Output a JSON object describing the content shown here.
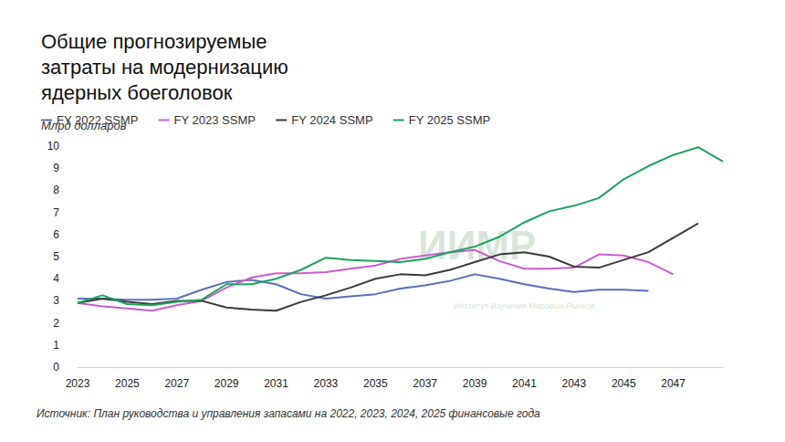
{
  "chart_data": {
    "type": "line",
    "title": "Общие прогнозируемые затраты на модернизацию ядерных боеголовок",
    "subtitle": "Млрд долларов",
    "source": "Источник: План руководства и управления запасами на 2022, 2023, 2024, 2025 финансовые года",
    "annotations": [
      "ИИМР",
      "Институт Изучения Мировых Рынков"
    ],
    "categories": [
      "2023",
      null,
      "2025",
      null,
      "2027",
      null,
      "2029",
      null,
      "2031",
      null,
      "2033",
      null,
      "2035",
      null,
      "2037",
      null,
      "2039",
      null,
      "2041",
      null,
      "2043",
      null,
      "2045",
      null,
      "2047",
      null,
      null
    ],
    "series": [
      {
        "name": "FY 2022 SSMP",
        "color": "#5b6fb5",
        "values": [
          3.1,
          3.1,
          3.05,
          3.05,
          3.1,
          3.5,
          3.85,
          3.95,
          3.75,
          3.3,
          3.1,
          3.2,
          3.3,
          3.55,
          3.7,
          3.9,
          4.2,
          4.0,
          3.75,
          3.55,
          3.4,
          3.5,
          3.5,
          3.45,
          null,
          null,
          null
        ]
      },
      {
        "name": "FY 2023 SSMP",
        "color": "#c75fc9",
        "values": [
          2.9,
          2.75,
          2.65,
          2.55,
          2.8,
          3.0,
          3.6,
          4.05,
          4.25,
          4.25,
          4.3,
          4.45,
          4.6,
          4.9,
          5.05,
          5.2,
          5.3,
          4.8,
          4.45,
          4.45,
          4.5,
          5.1,
          5.05,
          4.75,
          4.2,
          null,
          null
        ]
      },
      {
        "name": "FY 2024 SSMP",
        "color": "#3a3a3a",
        "values": [
          2.9,
          3.1,
          2.95,
          2.85,
          3.0,
          3.0,
          2.7,
          2.6,
          2.55,
          2.95,
          3.25,
          3.6,
          4.0,
          4.2,
          4.15,
          4.4,
          4.75,
          5.1,
          5.2,
          5.0,
          4.55,
          4.5,
          4.85,
          5.2,
          5.85,
          6.5,
          null
        ]
      },
      {
        "name": "FY 2025 SSMP",
        "color": "#1ea35c",
        "values": [
          2.9,
          3.25,
          2.85,
          2.8,
          2.95,
          3.05,
          3.75,
          3.75,
          4.0,
          4.4,
          4.95,
          4.85,
          4.8,
          4.75,
          4.9,
          5.2,
          5.45,
          5.9,
          6.55,
          7.05,
          7.3,
          7.65,
          8.5,
          9.1,
          9.6,
          9.95,
          9.3
        ]
      }
    ],
    "ylim": [
      0,
      10
    ],
    "yticks": [
      0,
      1,
      2,
      3,
      4,
      5,
      6,
      7,
      8,
      9,
      10
    ],
    "grid": false,
    "legend": "top-left"
  }
}
